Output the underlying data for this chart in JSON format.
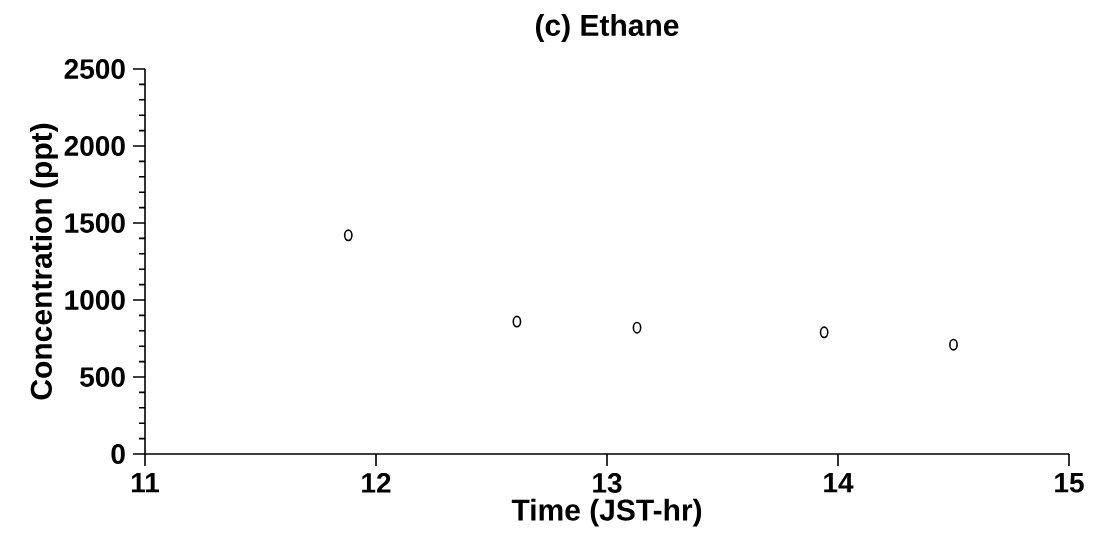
{
  "chart_data": {
    "type": "scatter",
    "title": "(c) Ethane",
    "xlabel": "Time   (JST-hr)",
    "ylabel": "Concentration   (ppt)",
    "x": [
      11.88,
      12.61,
      13.13,
      13.94,
      14.5
    ],
    "values": [
      1420,
      860,
      820,
      790,
      710
    ],
    "color": "#000000",
    "marker": "circle",
    "xlim": [
      11,
      15
    ],
    "ylim": [
      0,
      2500
    ],
    "xticks": [
      11,
      12,
      13,
      14,
      15
    ],
    "yticks": [
      0,
      500,
      1000,
      1500,
      2000,
      2500
    ],
    "grid": false
  }
}
